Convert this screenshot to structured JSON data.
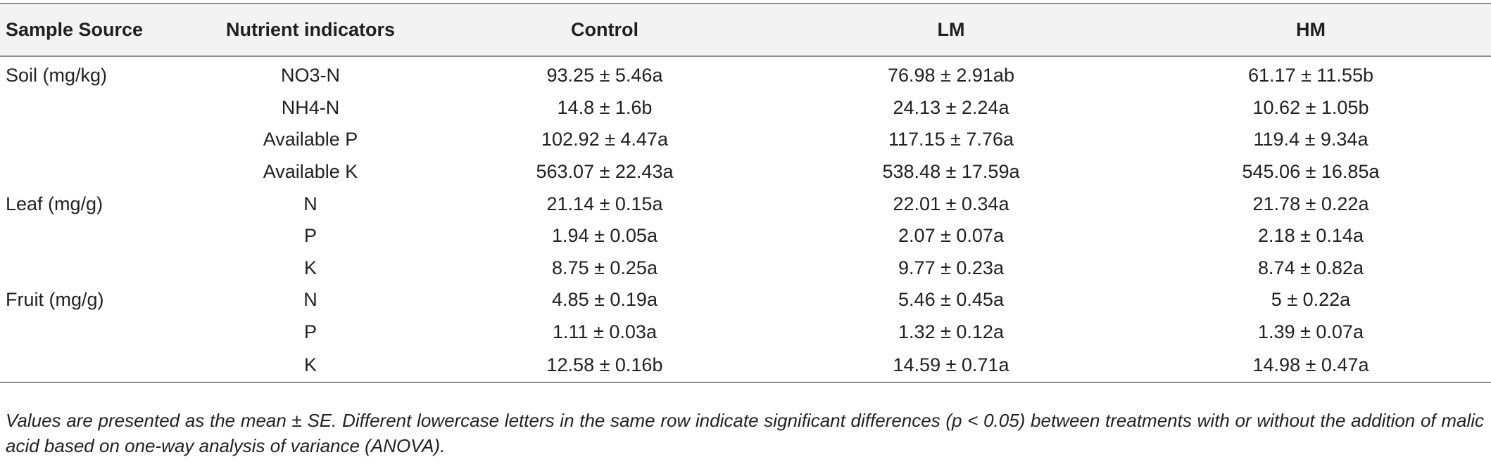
{
  "table": {
    "headers": [
      "Sample Source",
      "Nutrient indicators",
      "Control",
      "LM",
      "HM"
    ],
    "rows": [
      {
        "source": "Soil (mg/kg)",
        "indicator": "NO3-N",
        "control": "93.25 ± 5.46a",
        "lm": "76.98 ± 2.91ab",
        "hm": "61.17 ± 11.55b"
      },
      {
        "source": "",
        "indicator": "NH4-N",
        "control": "14.8 ± 1.6b",
        "lm": "24.13 ± 2.24a",
        "hm": "10.62 ± 1.05b"
      },
      {
        "source": "",
        "indicator": "Available P",
        "control": "102.92 ± 4.47a",
        "lm": "117.15 ± 7.76a",
        "hm": "119.4 ± 9.34a"
      },
      {
        "source": "",
        "indicator": "Available K",
        "control": "563.07 ± 22.43a",
        "lm": "538.48 ± 17.59a",
        "hm": "545.06 ± 16.85a"
      },
      {
        "source": "Leaf (mg/g)",
        "indicator": "N",
        "control": "21.14 ± 0.15a",
        "lm": "22.01 ± 0.34a",
        "hm": "21.78 ± 0.22a"
      },
      {
        "source": "",
        "indicator": "P",
        "control": "1.94 ± 0.05a",
        "lm": "2.07 ± 0.07a",
        "hm": "2.18 ± 0.14a"
      },
      {
        "source": "",
        "indicator": "K",
        "control": "8.75 ± 0.25a",
        "lm": "9.77 ± 0.23a",
        "hm": "8.74 ± 0.82a"
      },
      {
        "source": "Fruit (mg/g)",
        "indicator": "N",
        "control": "4.85 ± 0.19a",
        "lm": "5.46 ± 0.45a",
        "hm": "5 ± 0.22a"
      },
      {
        "source": "",
        "indicator": "P",
        "control": "1.11 ± 0.03a",
        "lm": "1.32 ± 0.12a",
        "hm": "1.39 ± 0.07a"
      },
      {
        "source": "",
        "indicator": "K",
        "control": "12.58 ± 0.16b",
        "lm": "14.59 ± 0.71a",
        "hm": "14.98 ± 0.47a"
      }
    ]
  },
  "footnote": "Values are presented as the mean ± SE. Different lowercase letters in the same row indicate significant differences (p < 0.05) between treatments with or without the addition of malic acid based on one-way analysis of variance (ANOVA)."
}
